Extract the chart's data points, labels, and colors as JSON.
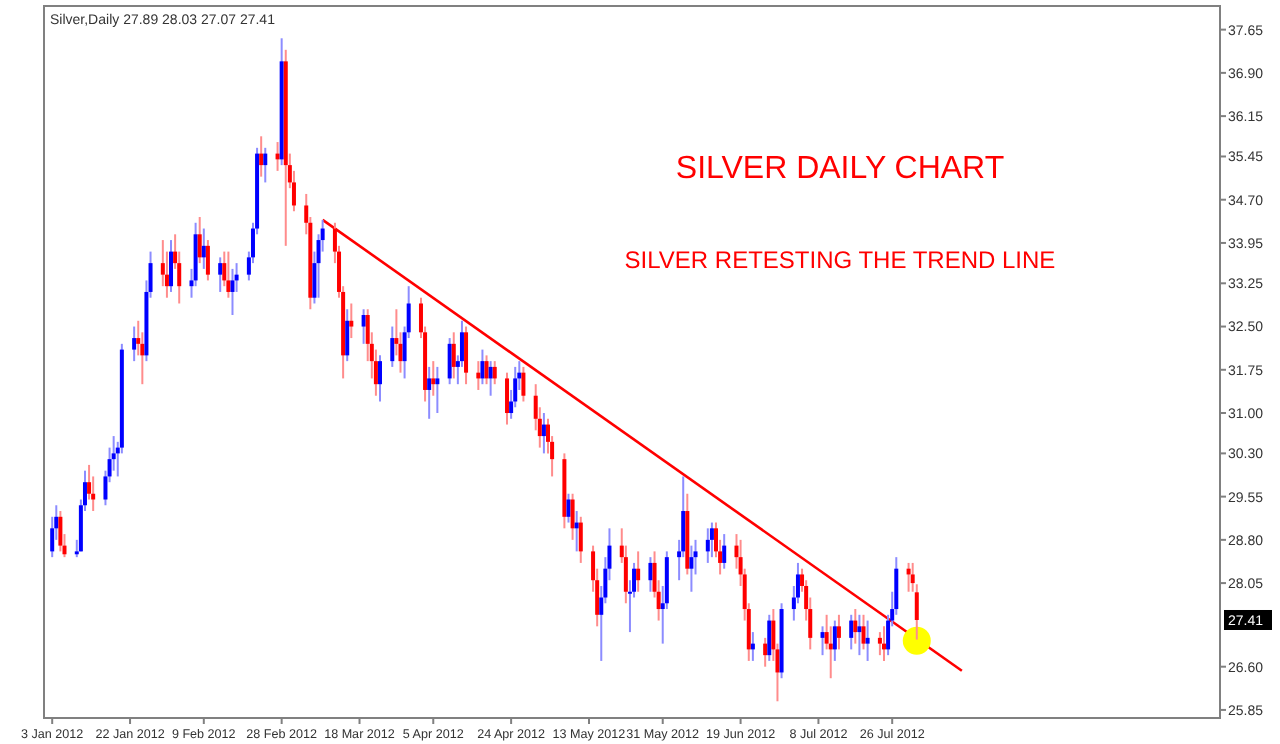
{
  "chart_data": {
    "type": "candlestick",
    "title": "Silver,Daily  27.89 28.03 27.07 27.41",
    "annotations": [
      "SILVER DAILY CHART",
      "SILVER RETESTING THE TREND LINE",
      {
        "text": "27.41",
        "y": 27.41
      }
    ],
    "x": [
      "2012-01-03",
      "2012-01-04",
      "2012-01-05",
      "2012-01-06",
      "2012-01-09",
      "2012-01-10",
      "2012-01-11",
      "2012-01-12",
      "2012-01-13",
      "2012-01-16",
      "2012-01-17",
      "2012-01-18",
      "2012-01-19",
      "2012-01-20",
      "2012-01-23",
      "2012-01-24",
      "2012-01-25",
      "2012-01-26",
      "2012-01-27",
      "2012-01-30",
      "2012-01-31",
      "2012-02-01",
      "2012-02-02",
      "2012-02-03",
      "2012-02-06",
      "2012-02-07",
      "2012-02-08",
      "2012-02-09",
      "2012-02-10",
      "2012-02-13",
      "2012-02-14",
      "2012-02-15",
      "2012-02-16",
      "2012-02-17",
      "2012-02-20",
      "2012-02-21",
      "2012-02-22",
      "2012-02-23",
      "2012-02-24",
      "2012-02-27",
      "2012-02-28",
      "2012-02-29",
      "2012-03-01",
      "2012-03-02",
      "2012-03-05",
      "2012-03-06",
      "2012-03-07",
      "2012-03-08",
      "2012-03-09",
      "2012-03-12",
      "2012-03-13",
      "2012-03-14",
      "2012-03-15",
      "2012-03-16",
      "2012-03-19",
      "2012-03-20",
      "2012-03-21",
      "2012-03-22",
      "2012-03-23",
      "2012-03-26",
      "2012-03-27",
      "2012-03-28",
      "2012-03-29",
      "2012-03-30",
      "2012-04-02",
      "2012-04-03",
      "2012-04-04",
      "2012-04-05",
      "2012-04-06",
      "2012-04-09",
      "2012-04-10",
      "2012-04-11",
      "2012-04-12",
      "2012-04-13",
      "2012-04-16",
      "2012-04-17",
      "2012-04-18",
      "2012-04-19",
      "2012-04-20",
      "2012-04-23",
      "2012-04-24",
      "2012-04-25",
      "2012-04-26",
      "2012-04-27",
      "2012-04-30",
      "2012-05-01",
      "2012-05-02",
      "2012-05-03",
      "2012-05-04",
      "2012-05-07",
      "2012-05-08",
      "2012-05-09",
      "2012-05-10",
      "2012-05-11",
      "2012-05-14",
      "2012-05-15",
      "2012-05-16",
      "2012-05-17",
      "2012-05-18",
      "2012-05-21",
      "2012-05-22",
      "2012-05-23",
      "2012-05-24",
      "2012-05-25",
      "2012-05-28",
      "2012-05-29",
      "2012-05-30",
      "2012-05-31",
      "2012-06-01",
      "2012-06-04",
      "2012-06-05",
      "2012-06-06",
      "2012-06-07",
      "2012-06-08",
      "2012-06-11",
      "2012-06-12",
      "2012-06-13",
      "2012-06-14",
      "2012-06-15",
      "2012-06-18",
      "2012-06-19",
      "2012-06-20",
      "2012-06-21",
      "2012-06-22",
      "2012-06-25",
      "2012-06-26",
      "2012-06-27",
      "2012-06-28",
      "2012-06-29",
      "2012-07-02",
      "2012-07-03",
      "2012-07-04",
      "2012-07-05",
      "2012-07-06",
      "2012-07-09",
      "2012-07-10",
      "2012-07-11",
      "2012-07-12",
      "2012-07-13",
      "2012-07-16",
      "2012-07-17",
      "2012-07-18",
      "2012-07-19",
      "2012-07-20",
      "2012-07-23",
      "2012-07-24",
      "2012-07-25",
      "2012-07-26",
      "2012-07-27",
      "2012-07-30",
      "2012-07-31",
      "2012-08-01"
    ],
    "ohlc": [
      [
        28.6,
        29.2,
        28.5,
        29.0
      ],
      [
        29.0,
        29.4,
        28.8,
        29.2
      ],
      [
        29.2,
        29.3,
        28.6,
        28.7
      ],
      [
        28.7,
        28.9,
        28.5,
        28.55
      ],
      [
        28.55,
        28.8,
        28.5,
        28.6
      ],
      [
        28.6,
        29.5,
        28.6,
        29.4
      ],
      [
        29.4,
        30.0,
        29.3,
        29.8
      ],
      [
        29.8,
        30.1,
        29.5,
        29.6
      ],
      [
        29.6,
        29.9,
        29.3,
        29.5
      ],
      [
        29.5,
        30.0,
        29.4,
        29.9
      ],
      [
        29.9,
        30.4,
        29.8,
        30.2
      ],
      [
        30.2,
        30.6,
        30.0,
        30.3
      ],
      [
        30.3,
        30.5,
        29.9,
        30.4
      ],
      [
        30.4,
        32.2,
        30.3,
        32.1
      ],
      [
        32.1,
        32.5,
        31.9,
        32.3
      ],
      [
        32.3,
        32.6,
        32.0,
        32.2
      ],
      [
        32.2,
        32.4,
        31.5,
        32.0
      ],
      [
        32.0,
        33.3,
        31.9,
        33.1
      ],
      [
        33.1,
        33.8,
        33.0,
        33.6
      ],
      [
        33.6,
        34.0,
        33.2,
        33.4
      ],
      [
        33.4,
        33.8,
        33.0,
        33.2
      ],
      [
        33.2,
        34.0,
        33.1,
        33.8
      ],
      [
        33.8,
        34.1,
        33.5,
        33.6
      ],
      [
        33.6,
        33.8,
        32.9,
        33.2
      ],
      [
        33.2,
        33.5,
        33.0,
        33.3
      ],
      [
        33.3,
        34.3,
        33.2,
        34.1
      ],
      [
        34.1,
        34.4,
        33.6,
        33.7
      ],
      [
        33.7,
        34.2,
        33.5,
        33.9
      ],
      [
        33.9,
        34.0,
        33.3,
        33.4
      ],
      [
        33.4,
        33.7,
        33.1,
        33.6
      ],
      [
        33.6,
        33.8,
        33.2,
        33.3
      ],
      [
        33.3,
        33.8,
        33.0,
        33.1
      ],
      [
        33.1,
        33.5,
        32.7,
        33.3
      ],
      [
        33.3,
        33.6,
        33.1,
        33.4
      ],
      [
        33.4,
        33.8,
        33.3,
        33.7
      ],
      [
        33.7,
        34.3,
        33.6,
        34.2
      ],
      [
        34.2,
        35.6,
        34.1,
        35.5
      ],
      [
        35.5,
        35.8,
        35.1,
        35.3
      ],
      [
        35.3,
        35.6,
        35.0,
        35.5
      ],
      [
        35.5,
        35.7,
        35.2,
        35.4
      ],
      [
        35.4,
        37.5,
        35.3,
        37.1
      ],
      [
        37.1,
        37.3,
        33.9,
        35.3
      ],
      [
        35.3,
        35.5,
        34.9,
        35.0
      ],
      [
        35.0,
        35.2,
        34.5,
        34.6
      ],
      [
        34.6,
        34.8,
        34.1,
        34.3
      ],
      [
        34.3,
        34.4,
        32.8,
        33.0
      ],
      [
        33.0,
        33.8,
        32.9,
        33.6
      ],
      [
        33.6,
        34.1,
        33.0,
        34.0
      ],
      [
        34.0,
        34.35,
        33.8,
        34.2
      ],
      [
        34.2,
        34.3,
        33.6,
        33.8
      ],
      [
        33.8,
        33.9,
        33.0,
        33.1
      ],
      [
        33.1,
        33.2,
        31.6,
        32.0
      ],
      [
        32.0,
        32.8,
        31.9,
        32.6
      ],
      [
        32.6,
        32.9,
        32.3,
        32.5
      ],
      [
        32.5,
        32.8,
        32.2,
        32.7
      ],
      [
        32.7,
        32.8,
        31.9,
        32.2
      ],
      [
        32.2,
        32.4,
        31.6,
        31.9
      ],
      [
        31.9,
        32.1,
        31.3,
        31.5
      ],
      [
        31.5,
        32.0,
        31.2,
        31.9
      ],
      [
        31.9,
        32.5,
        31.8,
        32.3
      ],
      [
        32.3,
        32.8,
        32.0,
        32.2
      ],
      [
        32.2,
        32.4,
        31.7,
        31.9
      ],
      [
        31.9,
        32.5,
        31.6,
        32.4
      ],
      [
        32.4,
        33.2,
        32.3,
        32.9
      ],
      [
        32.9,
        33.0,
        32.3,
        32.4
      ],
      [
        32.4,
        32.5,
        31.2,
        31.4
      ],
      [
        31.4,
        31.8,
        30.9,
        31.6
      ],
      [
        31.6,
        31.9,
        31.3,
        31.5
      ],
      [
        31.5,
        31.8,
        31.0,
        31.6
      ],
      [
        31.6,
        32.3,
        31.5,
        32.2
      ],
      [
        32.2,
        32.4,
        31.6,
        31.8
      ],
      [
        31.8,
        32.0,
        31.5,
        31.9
      ],
      [
        31.9,
        32.6,
        31.8,
        32.4
      ],
      [
        32.4,
        32.5,
        31.5,
        31.7
      ],
      [
        31.7,
        31.9,
        31.4,
        31.6
      ],
      [
        31.6,
        32.1,
        31.5,
        31.9
      ],
      [
        31.9,
        32.0,
        31.5,
        31.6
      ],
      [
        31.6,
        31.9,
        31.3,
        31.8
      ],
      [
        31.8,
        31.9,
        31.5,
        31.6
      ],
      [
        31.6,
        31.7,
        30.8,
        31.0
      ],
      [
        31.0,
        31.4,
        30.9,
        31.2
      ],
      [
        31.2,
        31.8,
        31.1,
        31.6
      ],
      [
        31.6,
        31.9,
        31.4,
        31.7
      ],
      [
        31.7,
        31.8,
        31.2,
        31.3
      ],
      [
        31.3,
        31.5,
        30.7,
        30.9
      ],
      [
        30.9,
        31.1,
        30.4,
        30.6
      ],
      [
        30.6,
        31.0,
        30.3,
        30.8
      ],
      [
        30.8,
        30.9,
        30.3,
        30.5
      ],
      [
        30.5,
        30.6,
        29.9,
        30.2
      ],
      [
        30.2,
        30.3,
        29.0,
        29.2
      ],
      [
        29.2,
        29.6,
        29.1,
        29.5
      ],
      [
        29.5,
        29.6,
        28.8,
        29.0
      ],
      [
        29.0,
        29.3,
        28.6,
        29.1
      ],
      [
        29.1,
        29.2,
        28.4,
        28.6
      ],
      [
        28.6,
        28.7,
        27.9,
        28.1
      ],
      [
        28.1,
        28.3,
        27.3,
        27.5
      ],
      [
        27.5,
        28.0,
        26.7,
        27.8
      ],
      [
        27.8,
        28.5,
        27.7,
        28.3
      ],
      [
        28.3,
        29.0,
        28.1,
        28.7
      ],
      [
        28.7,
        29.0,
        28.4,
        28.5
      ],
      [
        28.5,
        28.7,
        27.7,
        27.9
      ],
      [
        27.9,
        28.1,
        27.2,
        27.9
      ],
      [
        27.9,
        28.4,
        27.8,
        28.3
      ],
      [
        28.3,
        28.6,
        27.9,
        28.1
      ],
      [
        28.1,
        28.5,
        27.9,
        28.4
      ],
      [
        28.4,
        28.6,
        27.8,
        27.9
      ],
      [
        27.9,
        28.1,
        27.4,
        27.6
      ],
      [
        27.6,
        28.0,
        27.0,
        27.7
      ],
      [
        27.7,
        28.6,
        27.6,
        28.5
      ],
      [
        28.5,
        28.8,
        28.1,
        28.6
      ],
      [
        28.6,
        29.9,
        28.5,
        29.3
      ],
      [
        29.3,
        29.6,
        28.2,
        28.3
      ],
      [
        28.3,
        28.7,
        27.9,
        28.5
      ],
      [
        28.5,
        28.8,
        28.2,
        28.6
      ],
      [
        28.6,
        29.0,
        28.4,
        28.8
      ],
      [
        28.8,
        29.1,
        28.5,
        29.0
      ],
      [
        29.0,
        29.1,
        28.5,
        28.6
      ],
      [
        28.6,
        28.8,
        28.2,
        28.4
      ],
      [
        28.4,
        28.9,
        28.3,
        28.7
      ],
      [
        28.7,
        28.9,
        28.3,
        28.5
      ],
      [
        28.5,
        28.8,
        28.0,
        28.2
      ],
      [
        28.2,
        28.3,
        27.4,
        27.6
      ],
      [
        27.6,
        27.7,
        26.7,
        26.9
      ],
      [
        26.9,
        27.2,
        26.7,
        27.0
      ],
      [
        27.0,
        27.1,
        26.6,
        26.8
      ],
      [
        26.8,
        27.5,
        26.7,
        27.4
      ],
      [
        27.4,
        27.6,
        26.7,
        26.9
      ],
      [
        26.9,
        27.0,
        26.0,
        26.5
      ],
      [
        26.5,
        27.7,
        26.4,
        27.6
      ],
      [
        27.6,
        28.0,
        27.4,
        27.8
      ],
      [
        27.8,
        28.4,
        27.7,
        28.2
      ],
      [
        28.2,
        28.3,
        27.9,
        28.0
      ],
      [
        28.0,
        28.1,
        27.4,
        27.6
      ],
      [
        27.6,
        27.8,
        26.9,
        27.1
      ],
      [
        27.1,
        27.3,
        26.8,
        27.2
      ],
      [
        27.2,
        27.5,
        26.9,
        27.0
      ],
      [
        27.0,
        27.3,
        26.4,
        26.9
      ],
      [
        26.9,
        27.4,
        26.7,
        27.3
      ],
      [
        27.3,
        27.5,
        26.9,
        27.1
      ],
      [
        27.1,
        27.5,
        26.9,
        27.4
      ],
      [
        27.4,
        27.6,
        27.0,
        27.2
      ],
      [
        27.2,
        27.5,
        26.8,
        27.3
      ],
      [
        27.3,
        27.5,
        26.9,
        27.0
      ],
      [
        27.0,
        27.4,
        26.7,
        27.1
      ],
      [
        27.1,
        27.2,
        26.8,
        27.0
      ],
      [
        27.0,
        27.3,
        26.7,
        26.9
      ],
      [
        26.9,
        27.5,
        26.8,
        27.4
      ],
      [
        27.4,
        27.9,
        27.3,
        27.6
      ],
      [
        27.6,
        28.5,
        27.5,
        28.3
      ],
      [
        28.3,
        28.4,
        27.9,
        28.2
      ],
      [
        28.2,
        28.4,
        27.9,
        28.05
      ],
      [
        27.89,
        28.03,
        27.07,
        27.41
      ]
    ],
    "series": [
      {
        "type": "line",
        "color": "#ff0000",
        "x": [
          "2012-03-09",
          "2012-08-12"
        ],
        "values": [
          34.35,
          26.53
        ]
      },
      {
        "type": "scatter",
        "color": "#ffff00",
        "marker": "circle",
        "x": [
          "2012-08-01"
        ],
        "values": [
          27.05
        ]
      }
    ],
    "xlim": [
      "2012-01-01",
      "2012-10-14"
    ],
    "xticks": [
      {
        "value": "2012-01-03",
        "label": "3 Jan 2012"
      },
      {
        "value": "2012-01-22",
        "label": "22 Jan 2012"
      },
      {
        "value": "2012-02-09",
        "label": "9 Feb 2012"
      },
      {
        "value": "2012-02-28",
        "label": "28 Feb 2012"
      },
      {
        "value": "2012-03-18",
        "label": "18 Mar 2012"
      },
      {
        "value": "2012-04-05",
        "label": "5 Apr 2012"
      },
      {
        "value": "2012-04-24",
        "label": "24 Apr 2012"
      },
      {
        "value": "2012-05-13",
        "label": "13 May 2012"
      },
      {
        "value": "2012-05-31",
        "label": "31 May 2012"
      },
      {
        "value": "2012-06-19",
        "label": "19 Jun 2012"
      },
      {
        "value": "2012-07-08",
        "label": "8 Jul 2012"
      },
      {
        "value": "2012-07-26",
        "label": "26 Jul 2012"
      }
    ],
    "ylim": [
      25.71,
      38.06
    ],
    "yticks": [
      37.65,
      {
        "value": 36.9,
        "label": "36.90"
      },
      36.15,
      35.45,
      {
        "value": 34.7,
        "label": "34.70"
      },
      33.95,
      33.25,
      {
        "value": 32.5,
        "label": "32.50"
      },
      31.75,
      {
        "value": 31,
        "label": "31.00"
      },
      {
        "value": 30.3,
        "label": "30.30"
      },
      29.55,
      {
        "value": 28.8,
        "label": "28.80"
      },
      28.05,
      {
        "value": 26.6,
        "label": "26.60"
      },
      25.85
    ],
    "grid": false
  }
}
